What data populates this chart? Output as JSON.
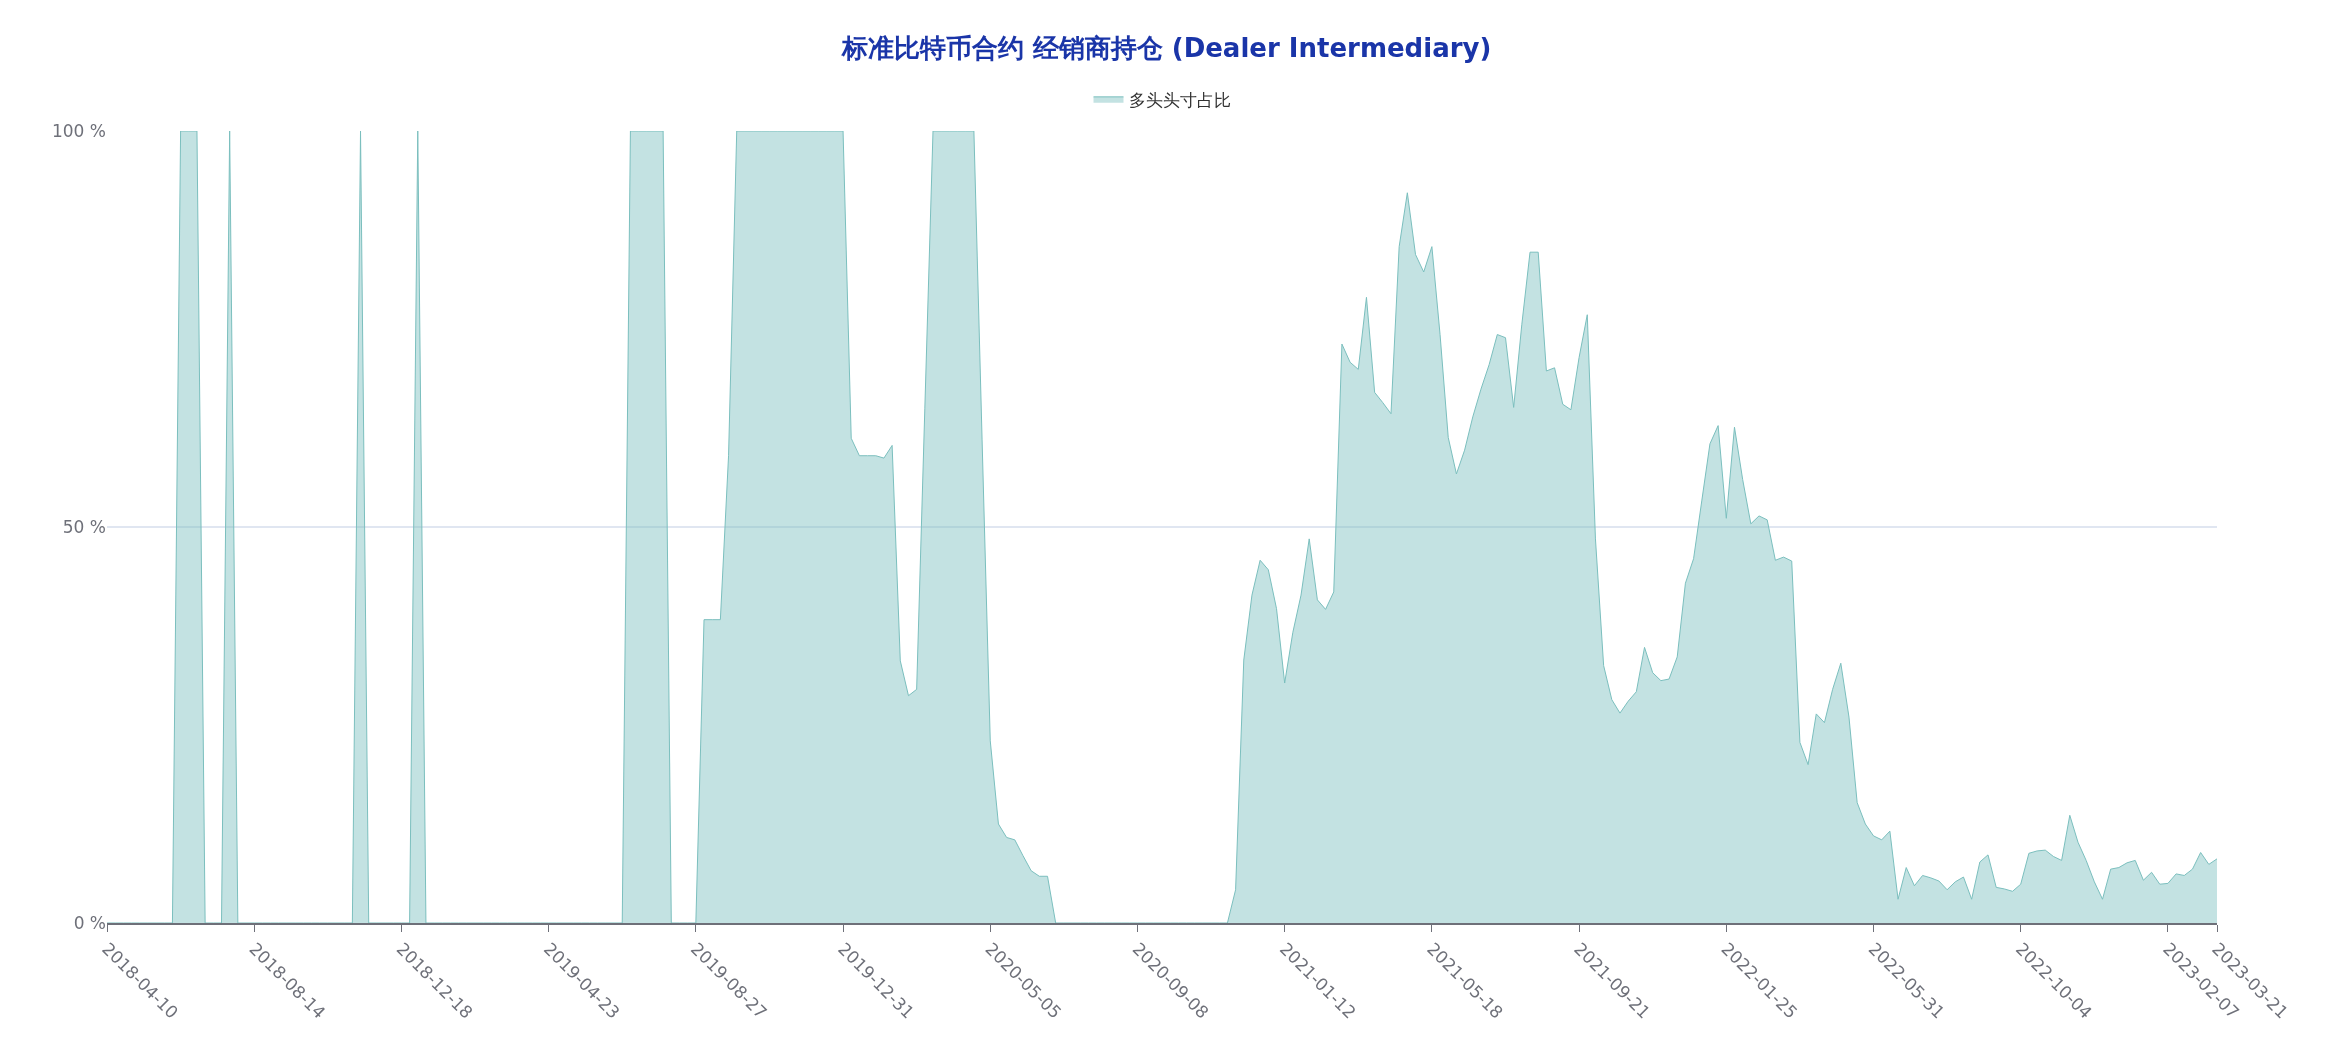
{
  "chart_data": {
    "type": "area",
    "title": "标准比特币合约 经销商持仓 (Dealer Intermediary)",
    "categories": [
      "2018-04-10",
      null,
      null,
      null,
      null,
      null,
      null,
      null,
      null,
      null,
      null,
      null,
      null,
      null,
      null,
      null,
      null,
      null,
      "2018-08-14",
      null,
      null,
      null,
      null,
      null,
      null,
      null,
      null,
      null,
      null,
      null,
      null,
      null,
      null,
      null,
      null,
      null,
      "2018-12-18",
      null,
      null,
      null,
      null,
      null,
      null,
      null,
      null,
      null,
      null,
      null,
      null,
      null,
      null,
      null,
      null,
      null,
      "2019-04-23",
      null,
      null,
      null,
      null,
      null,
      null,
      null,
      null,
      null,
      null,
      null,
      null,
      null,
      null,
      null,
      null,
      null,
      "2019-08-27",
      null,
      null,
      null,
      null,
      null,
      null,
      null,
      null,
      null,
      null,
      null,
      null,
      null,
      null,
      null,
      null,
      null,
      "2019-12-31",
      null,
      null,
      null,
      null,
      null,
      null,
      null,
      null,
      null,
      null,
      null,
      null,
      null,
      null,
      null,
      null,
      null,
      "2020-05-05",
      null,
      null,
      null,
      null,
      null,
      null,
      null,
      null,
      null,
      null,
      null,
      null,
      null,
      null,
      null,
      null,
      null,
      "2020-09-08",
      null,
      null,
      null,
      null,
      null,
      null,
      null,
      null,
      null,
      null,
      null,
      null,
      null,
      null,
      null,
      null,
      null,
      "2021-01-12",
      null,
      null,
      null,
      null,
      null,
      null,
      null,
      null,
      null,
      null,
      null,
      null,
      null,
      null,
      null,
      null,
      null,
      "2021-05-18",
      null,
      null,
      null,
      null,
      null,
      null,
      null,
      null,
      null,
      null,
      null,
      null,
      null,
      null,
      null,
      null,
      null,
      "2021-09-21",
      null,
      null,
      null,
      null,
      null,
      null,
      null,
      null,
      null,
      null,
      null,
      null,
      null,
      null,
      null,
      null,
      null,
      "2022-01-25",
      null,
      null,
      null,
      null,
      null,
      null,
      null,
      null,
      null,
      null,
      null,
      null,
      null,
      null,
      null,
      null,
      null,
      "2022-05-31",
      null,
      null,
      null,
      null,
      null,
      null,
      null,
      null,
      null,
      null,
      null,
      null,
      null,
      null,
      null,
      null,
      null,
      "2022-10-04",
      null,
      null,
      null,
      null,
      null,
      null,
      null,
      null,
      null,
      null,
      null,
      null,
      null,
      null,
      null,
      null,
      null,
      "2023-02-07",
      null,
      null,
      null,
      null,
      null,
      "2023-03-21"
    ],
    "series": [
      {
        "name": "多头头寸占比",
        "color": "#7bbfbe",
        "values": [
          0,
          0,
          0,
          0,
          0,
          0,
          0,
          0,
          0,
          100,
          100,
          100,
          0,
          0,
          0,
          100,
          0,
          0,
          0,
          0,
          0,
          0,
          0,
          0,
          0,
          0,
          0,
          0,
          0,
          0,
          0,
          100,
          0,
          0,
          0,
          0,
          0,
          0,
          100,
          0,
          0,
          0,
          0,
          0,
          0,
          0,
          0,
          0,
          0,
          0,
          0,
          0,
          0,
          0,
          0,
          0,
          0,
          0,
          0,
          0,
          0,
          0,
          0,
          0,
          100,
          100,
          100,
          100,
          100,
          0,
          0,
          0,
          0,
          38.3,
          38.3,
          38.3,
          59.0,
          100,
          100,
          100,
          100,
          100,
          100,
          100,
          100,
          100,
          100,
          100,
          100,
          100,
          100,
          61.2,
          59.0,
          59.0,
          59.0,
          58.7,
          60.3,
          33.1,
          28.7,
          29.5,
          65,
          100,
          100,
          100,
          100,
          100,
          100,
          61,
          23.0,
          12.5,
          10.8,
          10.5,
          8.5,
          6.6,
          5.9,
          5.9,
          0,
          0,
          0,
          0,
          0,
          0,
          0,
          0,
          0,
          0,
          0,
          0,
          0,
          0,
          0,
          0,
          0,
          0,
          0,
          0,
          0,
          0,
          4.2,
          33.2,
          41.4,
          45.8,
          44.6,
          39.7,
          30.3,
          36.7,
          41.4,
          48.5,
          40.8,
          39.6,
          41.8,
          73.1,
          70.8,
          69.9,
          79.0,
          67.0,
          65.7,
          64.3,
          85.4,
          92.2,
          84.4,
          82.2,
          85.4,
          74.3,
          61.3,
          56.7,
          59.7,
          63.9,
          67.4,
          70.5,
          74.3,
          73.9,
          65.1,
          75.6,
          84.7,
          84.7,
          69.7,
          70.1,
          65.5,
          64.8,
          71.4,
          76.8,
          48.5,
          32.5,
          28.2,
          26.5,
          28.0,
          29.2,
          34.8,
          31.6,
          30.6,
          30.8,
          33.6,
          42.9,
          46.0,
          53.3,
          60.5,
          62.8,
          51.1,
          62.6,
          56.0,
          50.4,
          51.4,
          50.9,
          45.8,
          46.2,
          45.7,
          22.8,
          20.0,
          26.4,
          25.3,
          29.5,
          32.8,
          26.0,
          15.2,
          12.5,
          11.0,
          10.5,
          11.6,
          3.0,
          7.0,
          4.7,
          6.0,
          5.7,
          5.3,
          4.2,
          5.2,
          5.8,
          3.0,
          7.7,
          8.6,
          4.5,
          4.3,
          4.0,
          4.9,
          8.8,
          9.1,
          9.2,
          8.4,
          7.9,
          13.6,
          10.2,
          7.9,
          5.2,
          3.0,
          6.8,
          7.0,
          7.6,
          7.9,
          5.4,
          6.4,
          4.9,
          5.0,
          6.2,
          6.0,
          6.8,
          8.9,
          7.4,
          8.1
        ]
      }
    ],
    "ylim": [
      0,
      100
    ],
    "yticks": [
      {
        "value": 0,
        "label": "0 %"
      },
      {
        "value": 50,
        "label": "50 %"
      },
      {
        "value": 100,
        "label": "100 %"
      }
    ],
    "grid": "y",
    "legend": "top",
    "marker": "none",
    "line_style": "solid"
  }
}
